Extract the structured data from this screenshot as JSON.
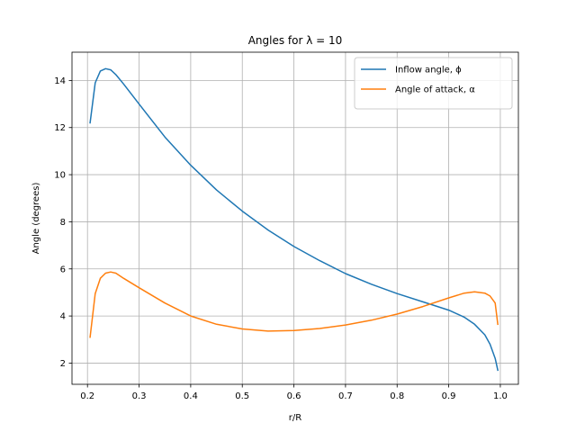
{
  "chart_data": {
    "type": "line",
    "title": "Angles for λ = 10",
    "xlabel": "r/R",
    "ylabel": "Angle (degrees)",
    "xlim": [
      0.17,
      1.035
    ],
    "ylim": [
      1.1,
      15.2
    ],
    "xticks": [
      0.2,
      0.3,
      0.4,
      0.5,
      0.6,
      0.7,
      0.8,
      0.9,
      1.0
    ],
    "xtick_labels": [
      "0.2",
      "0.3",
      "0.4",
      "0.5",
      "0.6",
      "0.7",
      "0.8",
      "0.9",
      "1.0"
    ],
    "yticks": [
      2,
      4,
      6,
      8,
      10,
      12,
      14
    ],
    "ytick_labels": [
      "2",
      "4",
      "6",
      "8",
      "10",
      "12",
      "14"
    ],
    "grid": true,
    "legend_position": "top-right",
    "series": [
      {
        "name": "Inflow angle, ϕ",
        "color": "#1f77b4",
        "x": [
          0.205,
          0.215,
          0.225,
          0.235,
          0.245,
          0.255,
          0.27,
          0.3,
          0.35,
          0.4,
          0.45,
          0.5,
          0.55,
          0.6,
          0.65,
          0.7,
          0.75,
          0.8,
          0.85,
          0.9,
          0.93,
          0.95,
          0.97,
          0.98,
          0.99,
          0.995
        ],
        "y": [
          12.2,
          13.9,
          14.4,
          14.5,
          14.45,
          14.25,
          13.85,
          13.0,
          11.6,
          10.4,
          9.35,
          8.45,
          7.65,
          6.95,
          6.35,
          5.8,
          5.35,
          4.95,
          4.6,
          4.25,
          3.95,
          3.65,
          3.2,
          2.8,
          2.2,
          1.7
        ]
      },
      {
        "name": "Angle of attack, α",
        "color": "#ff7f0e",
        "x": [
          0.205,
          0.215,
          0.225,
          0.235,
          0.245,
          0.255,
          0.27,
          0.3,
          0.35,
          0.4,
          0.45,
          0.5,
          0.55,
          0.6,
          0.65,
          0.7,
          0.75,
          0.8,
          0.85,
          0.9,
          0.93,
          0.95,
          0.97,
          0.98,
          0.99,
          0.995
        ],
        "y": [
          3.1,
          4.95,
          5.6,
          5.82,
          5.87,
          5.82,
          5.6,
          5.2,
          4.55,
          4.0,
          3.65,
          3.45,
          3.36,
          3.38,
          3.47,
          3.62,
          3.82,
          4.08,
          4.4,
          4.77,
          4.97,
          5.03,
          4.97,
          4.85,
          4.55,
          3.65
        ]
      }
    ]
  }
}
